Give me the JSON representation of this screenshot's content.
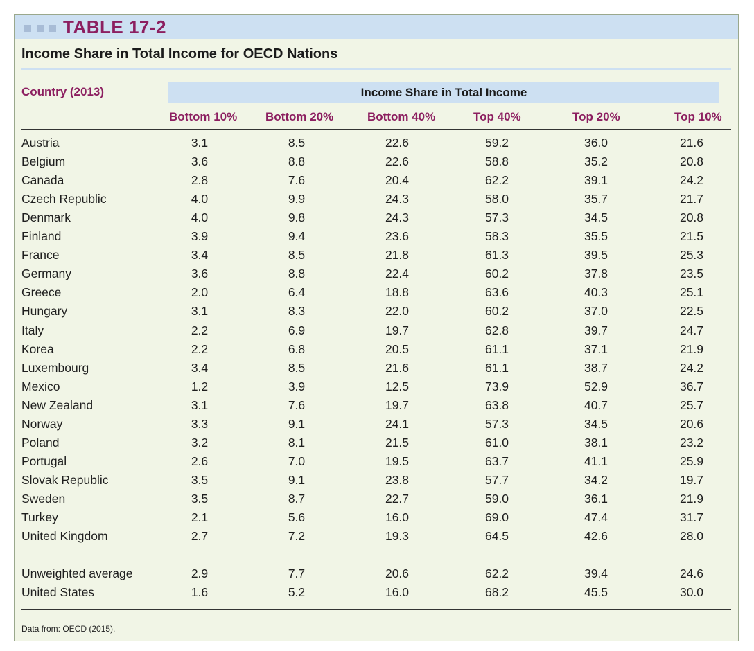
{
  "banner": {
    "label": "TABLE 17-2"
  },
  "title": "Income Share in Total Income for OECD Nations",
  "country_header": "Country (2013)",
  "group_header": "Income Share in Total Income",
  "column_headers": [
    "Bottom 10%",
    "Bottom 20%",
    "Bottom 40%",
    "Top 40%",
    "Top 20%",
    "Top 10%"
  ],
  "rows": [
    {
      "country": "Austria",
      "values": [
        "3.1",
        "8.5",
        "22.6",
        "59.2",
        "36.0",
        "21.6"
      ]
    },
    {
      "country": "Belgium",
      "values": [
        "3.6",
        "8.8",
        "22.6",
        "58.8",
        "35.2",
        "20.8"
      ]
    },
    {
      "country": "Canada",
      "values": [
        "2.8",
        "7.6",
        "20.4",
        "62.2",
        "39.1",
        "24.2"
      ]
    },
    {
      "country": "Czech Republic",
      "values": [
        "4.0",
        "9.9",
        "24.3",
        "58.0",
        "35.7",
        "21.7"
      ]
    },
    {
      "country": "Denmark",
      "values": [
        "4.0",
        "9.8",
        "24.3",
        "57.3",
        "34.5",
        "20.8"
      ]
    },
    {
      "country": "Finland",
      "values": [
        "3.9",
        "9.4",
        "23.6",
        "58.3",
        "35.5",
        "21.5"
      ]
    },
    {
      "country": "France",
      "values": [
        "3.4",
        "8.5",
        "21.8",
        "61.3",
        "39.5",
        "25.3"
      ]
    },
    {
      "country": "Germany",
      "values": [
        "3.6",
        "8.8",
        "22.4",
        "60.2",
        "37.8",
        "23.5"
      ]
    },
    {
      "country": "Greece",
      "values": [
        "2.0",
        "6.4",
        "18.8",
        "63.6",
        "40.3",
        "25.1"
      ]
    },
    {
      "country": "Hungary",
      "values": [
        "3.1",
        "8.3",
        "22.0",
        "60.2",
        "37.0",
        "22.5"
      ]
    },
    {
      "country": "Italy",
      "values": [
        "2.2",
        "6.9",
        "19.7",
        "62.8",
        "39.7",
        "24.7"
      ]
    },
    {
      "country": "Korea",
      "values": [
        "2.2",
        "6.8",
        "20.5",
        "61.1",
        "37.1",
        "21.9"
      ]
    },
    {
      "country": "Luxembourg",
      "values": [
        "3.4",
        "8.5",
        "21.6",
        "61.1",
        "38.7",
        "24.2"
      ]
    },
    {
      "country": "Mexico",
      "values": [
        "1.2",
        "3.9",
        "12.5",
        "73.9",
        "52.9",
        "36.7"
      ]
    },
    {
      "country": "New Zealand",
      "values": [
        "3.1",
        "7.6",
        "19.7",
        "63.8",
        "40.7",
        "25.7"
      ]
    },
    {
      "country": "Norway",
      "values": [
        "3.3",
        "9.1",
        "24.1",
        "57.3",
        "34.5",
        "20.6"
      ]
    },
    {
      "country": "Poland",
      "values": [
        "3.2",
        "8.1",
        "21.5",
        "61.0",
        "38.1",
        "23.2"
      ]
    },
    {
      "country": "Portugal",
      "values": [
        "2.6",
        "7.0",
        "19.5",
        "63.7",
        "41.1",
        "25.9"
      ]
    },
    {
      "country": "Slovak Republic",
      "values": [
        "3.5",
        "9.1",
        "23.8",
        "57.7",
        "34.2",
        "19.7"
      ]
    },
    {
      "country": "Sweden",
      "values": [
        "3.5",
        "8.7",
        "22.7",
        "59.0",
        "36.1",
        "21.9"
      ]
    },
    {
      "country": "Turkey",
      "values": [
        "2.1",
        "5.6",
        "16.0",
        "69.0",
        "47.4",
        "31.7"
      ]
    },
    {
      "country": "United Kingdom",
      "values": [
        "2.7",
        "7.2",
        "19.3",
        "64.5",
        "42.6",
        "28.0"
      ]
    }
  ],
  "summary_rows": [
    {
      "country": "Unweighted average",
      "values": [
        "2.9",
        "7.7",
        "20.6",
        "62.2",
        "39.4",
        "24.6"
      ]
    },
    {
      "country": "United States",
      "values": [
        "1.6",
        "5.2",
        "16.0",
        "68.2",
        "45.5",
        "30.0"
      ]
    }
  ],
  "source": "Data from: OECD (2015).",
  "colors": {
    "banner": "#cde0f2",
    "accent": "#8c1f60",
    "panel": "#f1f5e6"
  }
}
